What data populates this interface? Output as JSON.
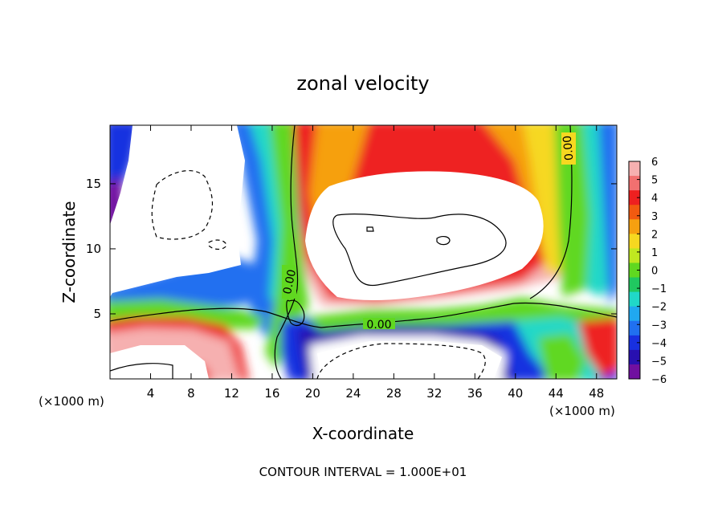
{
  "chart_data": {
    "type": "heatmap",
    "title": "zonal velocity",
    "xlabel": "X-coordinate",
    "ylabel": "Z-coordinate",
    "x_unit_label": "(×1000 m)",
    "x_unit_label_right": "(×1000 m)",
    "footer": "CONTOUR INTERVAL = 1.000E+01",
    "xlim": [
      0,
      50
    ],
    "ylim": [
      0,
      19.5
    ],
    "x_ticks": [
      4,
      8,
      12,
      16,
      20,
      24,
      28,
      32,
      36,
      40,
      44,
      48
    ],
    "x_tick_labels": [
      "4",
      "8",
      "12",
      "16",
      "20",
      "24",
      "28",
      "32",
      "36",
      "40",
      "44",
      "48"
    ],
    "y_ticks": [
      5,
      10,
      15
    ],
    "y_tick_labels": [
      "5",
      "10",
      "15"
    ],
    "colorbar": {
      "range": [
        -6,
        6
      ],
      "ticks": [
        6,
        5,
        4,
        3,
        2,
        1,
        0,
        -1,
        -2,
        -3,
        -4,
        -5,
        -6
      ],
      "tick_labels": [
        "6",
        "5",
        "4",
        "3",
        "2",
        "1",
        "0",
        "−1",
        "−2",
        "−3",
        "−4",
        "−5",
        "−6"
      ],
      "colors": [
        "#f6b0b0",
        "#f27070",
        "#ee2020",
        "#f25a10",
        "#f6a010",
        "#f6d820",
        "#c0e820",
        "#60d820",
        "#20c860",
        "#20d8c8",
        "#20a8f0",
        "#2070f0",
        "#1830e0",
        "#2810b0",
        "#7010a0"
      ]
    },
    "contour_labels": [
      "0.00",
      "0.00",
      "0.00"
    ],
    "grid": false,
    "legend_position": "right"
  }
}
